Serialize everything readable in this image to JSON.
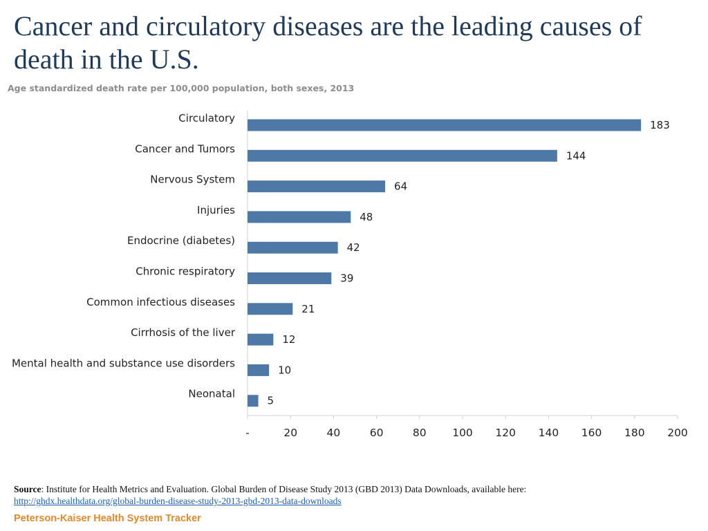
{
  "page": {
    "title": "Cancer and circulatory diseases are the leading causes of death in the U.S.",
    "subtitle": "Age standardized death rate per 100,000 population, both sexes, 2013"
  },
  "footer": {
    "source_label": "Source",
    "source_text": ": Institute for Health Metrics and Evaluation. Global Burden of Disease Study 2013 (GBD 2013) Data Downloads, available here:",
    "source_link": "http://ghdx.healthdata.org/global-burden-disease-study-2013-gbd-2013-data-downloads",
    "brand": "Peterson-Kaiser Health System Tracker"
  },
  "colors": {
    "bar": "#4e79a7",
    "title": "#1f3a5a",
    "brand": "#e08a2c"
  },
  "chart_data": {
    "type": "bar",
    "orientation": "horizontal",
    "title": "Cancer and circulatory diseases are the leading causes of death in the U.S.",
    "subtitle": "Age standardized death rate per 100,000 population, both sexes, 2013",
    "categories": [
      "Circulatory",
      "Cancer and Tumors",
      "Nervous System",
      "Injuries",
      "Endocrine (diabetes)",
      "Chronic respiratory",
      "Common infectious diseases",
      "Cirrhosis of the liver",
      "Mental health and substance use disorders",
      "Neonatal"
    ],
    "values": [
      183,
      144,
      64,
      48,
      42,
      39,
      21,
      12,
      10,
      5
    ],
    "xlabel": "",
    "ylabel": "",
    "xlim": [
      0,
      200
    ],
    "xticks": [
      0,
      20,
      40,
      60,
      80,
      100,
      120,
      140,
      160,
      180,
      200
    ],
    "xtick_labels": [
      "-",
      "20",
      "40",
      "60",
      "80",
      "100",
      "120",
      "140",
      "160",
      "180",
      "200"
    ],
    "grid": false,
    "legend": "none"
  }
}
